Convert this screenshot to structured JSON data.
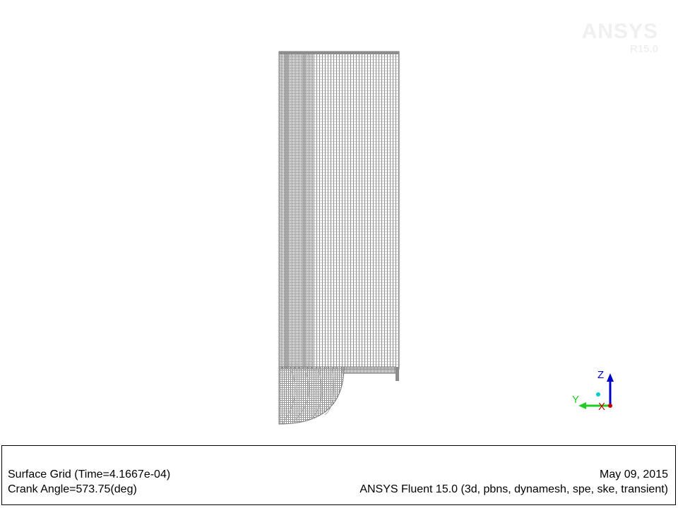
{
  "watermark": {
    "brand": "ANSYS",
    "release": "R15.0"
  },
  "graphics": {
    "mesh_color": "#8c8c8c",
    "background_color": "#ffffff"
  },
  "axes_triad": {
    "z_label": "Z",
    "y_label": "Y",
    "x_label": "X",
    "z_color": "#0000cc",
    "y_color": "#22cc22",
    "x_color": "#cc0000",
    "center_color": "#00cccc"
  },
  "info": {
    "title": "Surface Grid  (Time=4.1667e-04)",
    "crank_angle": "Crank Angle=573.75(deg)",
    "date": "May 09, 2015",
    "solver": "ANSYS Fluent 15.0 (3d, pbns, dynamesh, spe, ske, transient)"
  }
}
